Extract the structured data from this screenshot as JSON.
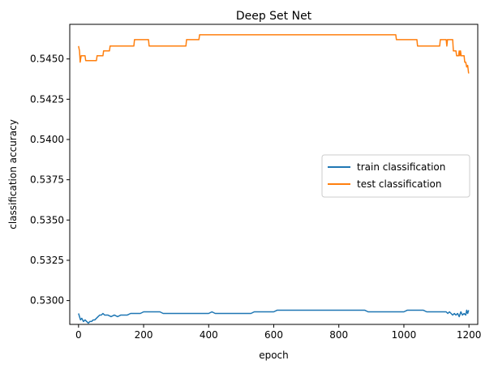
{
  "chart_data": {
    "type": "line",
    "title": "Deep Set Net",
    "xlabel": "epoch",
    "ylabel": "classification accuracy",
    "xlim": [
      -27,
      1227
    ],
    "ylim": [
      0.52852,
      0.54715
    ],
    "xticks": [
      0,
      200,
      400,
      600,
      800,
      1000,
      1200
    ],
    "xtick_labels": [
      "0",
      "200",
      "400",
      "600",
      "800",
      "1000",
      "1200"
    ],
    "yticks": [
      0.53,
      0.5325,
      0.535,
      0.5375,
      0.54,
      0.5425,
      0.545
    ],
    "ytick_labels": [
      "0.5300",
      "0.5325",
      "0.5350",
      "0.5375",
      "0.5400",
      "0.5425",
      "0.5450"
    ],
    "grid": false,
    "legend_position": "center-right",
    "series": [
      {
        "name": "train classification",
        "color": "#1f77b4",
        "points": [
          [
            0,
            0.5292
          ],
          [
            3,
            0.529
          ],
          [
            6,
            0.5288
          ],
          [
            10,
            0.5289
          ],
          [
            15,
            0.5287
          ],
          [
            20,
            0.5288
          ],
          [
            25,
            0.5287
          ],
          [
            30,
            0.5286
          ],
          [
            35,
            0.5287
          ],
          [
            40,
            0.5287
          ],
          [
            45,
            0.5288
          ],
          [
            50,
            0.5288
          ],
          [
            55,
            0.5289
          ],
          [
            60,
            0.529
          ],
          [
            65,
            0.5291
          ],
          [
            70,
            0.5291
          ],
          [
            75,
            0.5292
          ],
          [
            80,
            0.5291
          ],
          [
            90,
            0.5291
          ],
          [
            100,
            0.529
          ],
          [
            110,
            0.5291
          ],
          [
            120,
            0.529
          ],
          [
            130,
            0.5291
          ],
          [
            140,
            0.5291
          ],
          [
            150,
            0.5291
          ],
          [
            160,
            0.5292
          ],
          [
            175,
            0.5292
          ],
          [
            190,
            0.5292
          ],
          [
            200,
            0.5293
          ],
          [
            250,
            0.5293
          ],
          [
            260,
            0.5292
          ],
          [
            400,
            0.5292
          ],
          [
            410,
            0.5293
          ],
          [
            420,
            0.5292
          ],
          [
            530,
            0.5292
          ],
          [
            540,
            0.5293
          ],
          [
            600,
            0.5293
          ],
          [
            610,
            0.5294
          ],
          [
            880,
            0.5294
          ],
          [
            890,
            0.5293
          ],
          [
            1000,
            0.5293
          ],
          [
            1010,
            0.5294
          ],
          [
            1060,
            0.5294
          ],
          [
            1070,
            0.5293
          ],
          [
            1130,
            0.5293
          ],
          [
            1135,
            0.5292
          ],
          [
            1140,
            0.5293
          ],
          [
            1145,
            0.5292
          ],
          [
            1150,
            0.5291
          ],
          [
            1155,
            0.5292
          ],
          [
            1160,
            0.5291
          ],
          [
            1165,
            0.5292
          ],
          [
            1170,
            0.529
          ],
          [
            1175,
            0.5293
          ],
          [
            1180,
            0.5291
          ],
          [
            1185,
            0.5292
          ],
          [
            1190,
            0.5291
          ],
          [
            1193,
            0.5294
          ],
          [
            1196,
            0.5292
          ],
          [
            1199,
            0.5294
          ]
        ]
      },
      {
        "name": "test classification",
        "color": "#ff7f0e",
        "points": [
          [
            0,
            0.5458
          ],
          [
            3,
            0.5455
          ],
          [
            5,
            0.5448
          ],
          [
            8,
            0.5452
          ],
          [
            20,
            0.5452
          ],
          [
            22,
            0.5449
          ],
          [
            55,
            0.5449
          ],
          [
            57,
            0.5452
          ],
          [
            75,
            0.5452
          ],
          [
            77,
            0.5455
          ],
          [
            95,
            0.5455
          ],
          [
            97,
            0.5458
          ],
          [
            170,
            0.5458
          ],
          [
            172,
            0.5462
          ],
          [
            215,
            0.5462
          ],
          [
            217,
            0.5458
          ],
          [
            330,
            0.5458
          ],
          [
            332,
            0.5462
          ],
          [
            370,
            0.5462
          ],
          [
            372,
            0.5465
          ],
          [
            975,
            0.5465
          ],
          [
            977,
            0.5462
          ],
          [
            1040,
            0.5462
          ],
          [
            1042,
            0.5458
          ],
          [
            1110,
            0.5458
          ],
          [
            1112,
            0.5462
          ],
          [
            1130,
            0.5462
          ],
          [
            1132,
            0.5458
          ],
          [
            1134,
            0.5462
          ],
          [
            1150,
            0.5462
          ],
          [
            1152,
            0.5455
          ],
          [
            1160,
            0.5455
          ],
          [
            1162,
            0.5452
          ],
          [
            1168,
            0.5452
          ],
          [
            1170,
            0.5455
          ],
          [
            1172,
            0.5452
          ],
          [
            1174,
            0.5455
          ],
          [
            1176,
            0.5452
          ],
          [
            1185,
            0.5452
          ],
          [
            1187,
            0.5448
          ],
          [
            1190,
            0.5448
          ],
          [
            1193,
            0.5445
          ],
          [
            1196,
            0.5446
          ],
          [
            1199,
            0.5441
          ]
        ]
      }
    ]
  }
}
